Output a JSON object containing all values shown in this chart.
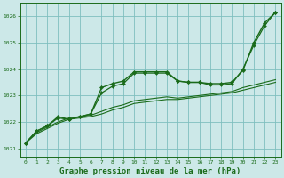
{
  "title": "Graphe pression niveau de la mer (hPa)",
  "bg_color": "#cce8e8",
  "grid_color": "#7fbfbf",
  "line_color": "#1a6b1a",
  "xlim": [
    -0.5,
    23.5
  ],
  "ylim": [
    1020.7,
    1026.5
  ],
  "yticks": [
    1021,
    1022,
    1023,
    1024,
    1025,
    1026
  ],
  "xticks": [
    0,
    1,
    2,
    3,
    4,
    5,
    6,
    7,
    8,
    9,
    10,
    11,
    12,
    13,
    14,
    15,
    16,
    17,
    18,
    19,
    20,
    21,
    22,
    23
  ],
  "line1_x": [
    0,
    1,
    2,
    3,
    4,
    5,
    6,
    7,
    8,
    9,
    10,
    11,
    12,
    13,
    14,
    15,
    16,
    17,
    18,
    19,
    20,
    21,
    22,
    23
  ],
  "line1_y": [
    1021.2,
    1021.55,
    1021.75,
    1021.95,
    1022.1,
    1022.15,
    1022.2,
    1022.3,
    1022.45,
    1022.55,
    1022.7,
    1022.75,
    1022.8,
    1022.85,
    1022.85,
    1022.9,
    1022.95,
    1023.0,
    1023.05,
    1023.1,
    1023.2,
    1023.3,
    1023.4,
    1023.5
  ],
  "line2_x": [
    0,
    1,
    2,
    3,
    4,
    5,
    6,
    7,
    8,
    9,
    10,
    11,
    12,
    13,
    14,
    15,
    16,
    17,
    18,
    19,
    20,
    21,
    22,
    23
  ],
  "line2_y": [
    1021.2,
    1021.6,
    1021.8,
    1022.0,
    1022.15,
    1022.2,
    1022.25,
    1022.4,
    1022.55,
    1022.65,
    1022.8,
    1022.85,
    1022.9,
    1022.95,
    1022.9,
    1022.95,
    1023.0,
    1023.05,
    1023.1,
    1023.15,
    1023.3,
    1023.4,
    1023.5,
    1023.6
  ],
  "line3_x": [
    0,
    1,
    2,
    3,
    4,
    5,
    6,
    7,
    8,
    9,
    10,
    11,
    12,
    13,
    14,
    15,
    16,
    17,
    18,
    19,
    20,
    21,
    22,
    23
  ],
  "line3_y": [
    1021.2,
    1021.65,
    1021.85,
    1022.2,
    1022.1,
    1022.2,
    1022.3,
    1023.3,
    1023.45,
    1023.55,
    1023.9,
    1023.9,
    1023.9,
    1023.9,
    1023.55,
    1023.5,
    1023.5,
    1023.45,
    1023.45,
    1023.5,
    1023.95,
    1025.0,
    1025.75,
    1026.15
  ],
  "line4_x": [
    0,
    1,
    2,
    3,
    4,
    5,
    6,
    7,
    8,
    9,
    10,
    11,
    12,
    13,
    14,
    15,
    16,
    17,
    18,
    19,
    20,
    21,
    22,
    23
  ],
  "line4_y": [
    1021.2,
    1021.65,
    1021.85,
    1022.15,
    1022.1,
    1022.2,
    1022.3,
    1023.1,
    1023.35,
    1023.45,
    1023.85,
    1023.85,
    1023.85,
    1023.85,
    1023.55,
    1023.5,
    1023.5,
    1023.4,
    1023.4,
    1023.45,
    1024.0,
    1024.9,
    1025.65,
    1026.15
  ]
}
